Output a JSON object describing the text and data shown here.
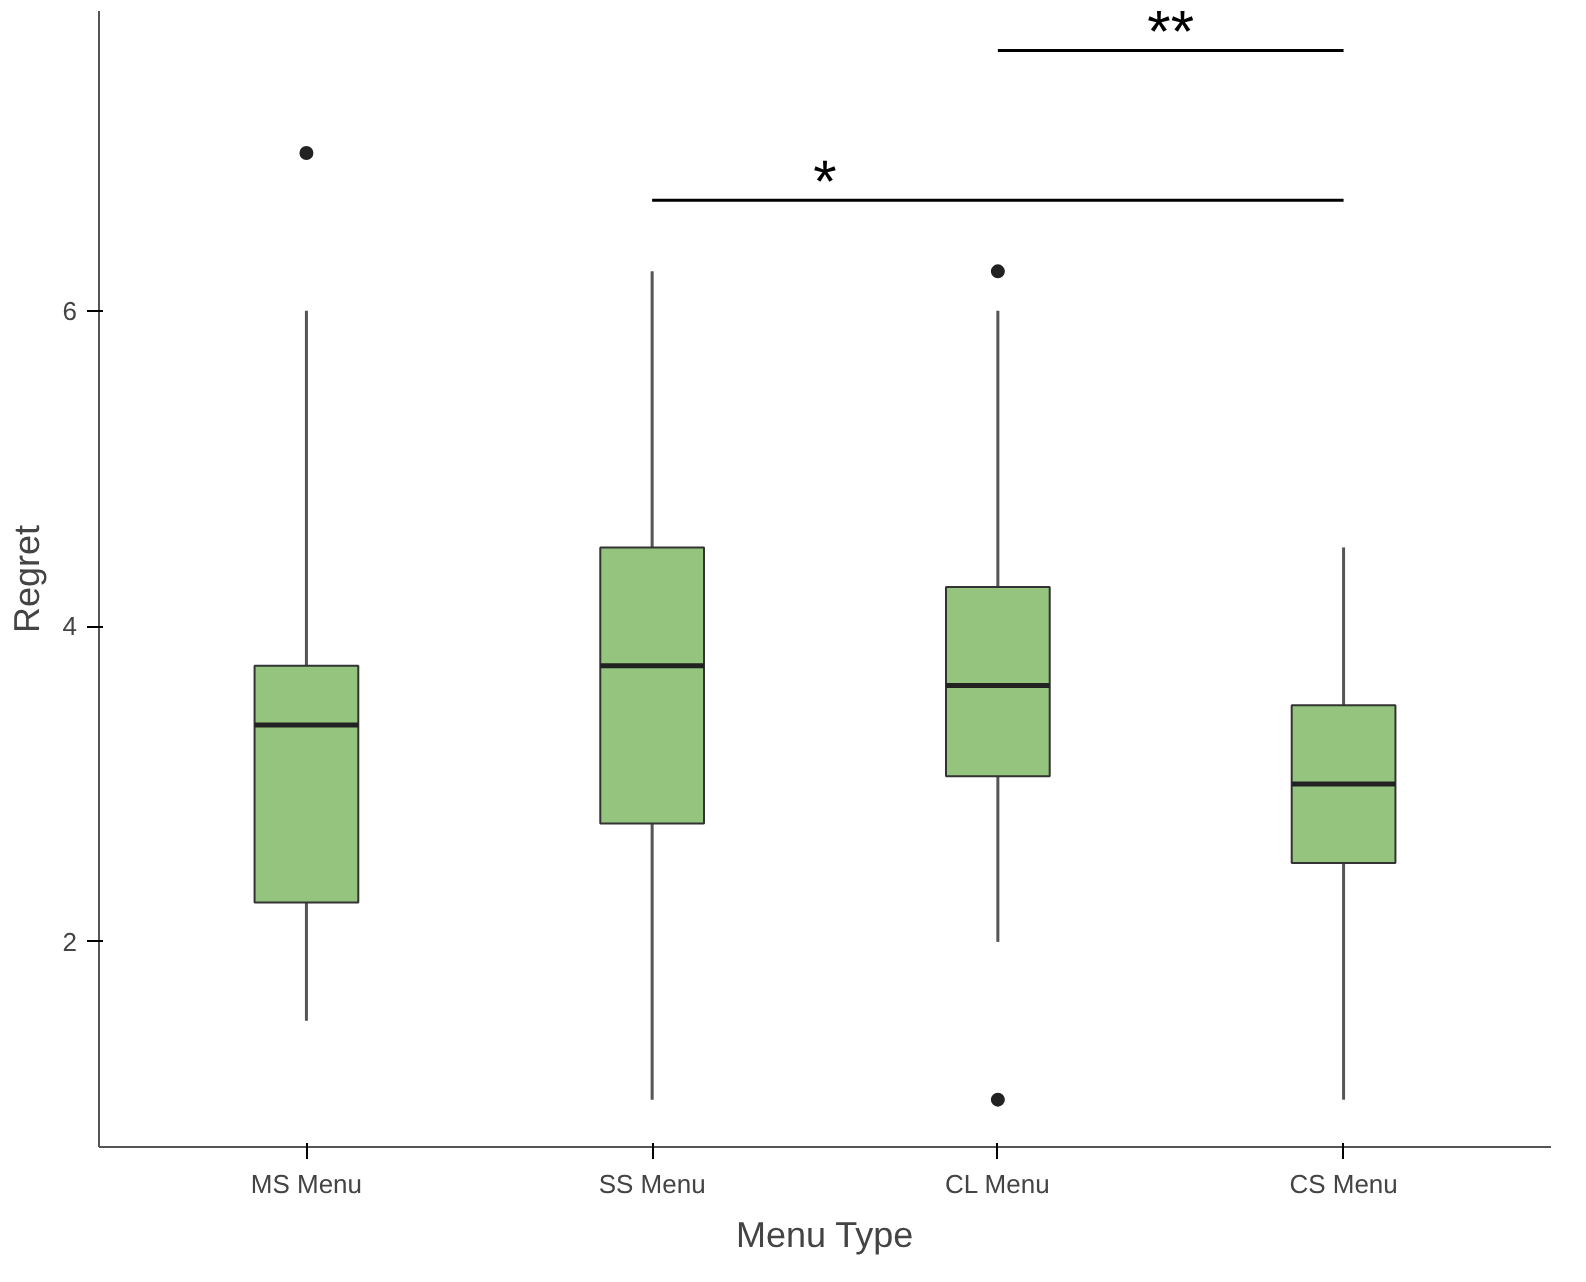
{
  "chart_data": {
    "type": "box",
    "xlabel": "Menu Type",
    "ylabel": "Regret",
    "categories": [
      "MS Menu",
      "SS Menu",
      "CL Menu",
      "CS Menu"
    ],
    "color": "#94c47d",
    "boxes": [
      {
        "low": 1.5,
        "q1": 2.25,
        "median": 3.375,
        "q3": 3.75,
        "high": 6,
        "outliers": [
          7
        ]
      },
      {
        "low": 1,
        "q1": 2.75,
        "median": 3.75,
        "q3": 4.5,
        "high": 6.25
      },
      {
        "low": 2,
        "q1": 3.05,
        "median": 3.625,
        "q3": 4.25,
        "high": 6,
        "outliers": [
          6.25,
          1
        ]
      },
      {
        "low": 1,
        "q1": 2.5,
        "median": 3,
        "q3": 3.5,
        "high": 4.5
      }
    ],
    "ylim": [
      0.7,
      7.9
    ],
    "yticks": [
      2,
      4,
      6
    ],
    "annotations": [
      "*",
      "**"
    ]
  }
}
